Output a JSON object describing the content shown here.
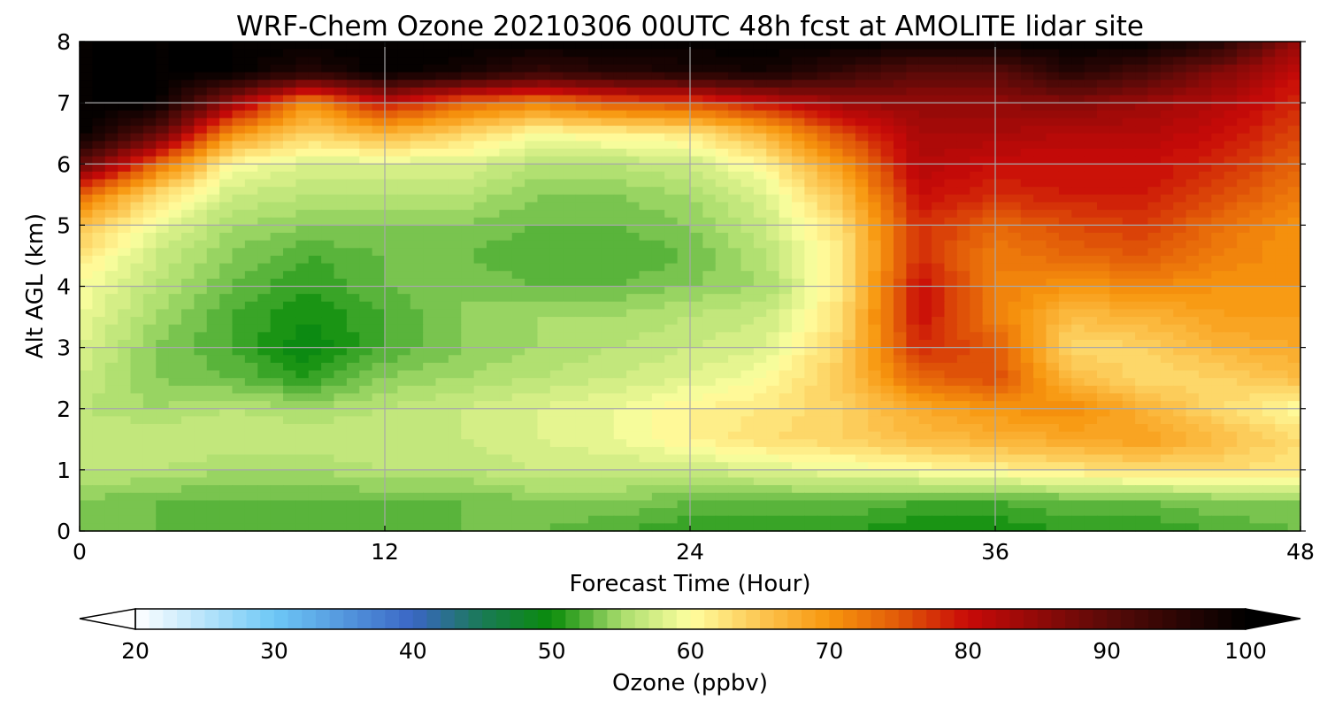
{
  "chart_data": {
    "type": "heatmap",
    "title": "WRF-Chem Ozone  20210306 00UTC 48h fcst at AMOLITE lidar site",
    "xlabel": "Forecast Time (Hour)",
    "ylabel": "Alt AGL (km)",
    "xlim": [
      0,
      48
    ],
    "ylim": [
      0,
      8
    ],
    "xticks": [
      0,
      12,
      24,
      36,
      48
    ],
    "yticks": [
      0,
      1,
      2,
      3,
      4,
      5,
      6,
      7,
      8
    ],
    "grid": true,
    "colorbar": {
      "label": "Ozone  (ppbv)",
      "min": 20,
      "max": 100,
      "step": 1,
      "ticks": [
        20,
        30,
        40,
        50,
        60,
        70,
        80,
        90,
        100
      ],
      "extend": "both",
      "under_color": "#ffffff",
      "over_color": "#000000",
      "colors": [
        {
          "value": 20,
          "color": "#ffffff"
        },
        {
          "value": 30,
          "color": "#6ec8f6"
        },
        {
          "value": 40,
          "color": "#3a66c4"
        },
        {
          "value": 45,
          "color": "#1a7a55"
        },
        {
          "value": 50,
          "color": "#0a8c0a"
        },
        {
          "value": 55,
          "color": "#a8dc6c"
        },
        {
          "value": 60,
          "color": "#ffffa0"
        },
        {
          "value": 65,
          "color": "#fcc652"
        },
        {
          "value": 70,
          "color": "#f7960d"
        },
        {
          "value": 75,
          "color": "#e25a08"
        },
        {
          "value": 80,
          "color": "#c80a08"
        },
        {
          "value": 90,
          "color": "#5a0a08"
        },
        {
          "value": 100,
          "color": "#000000"
        }
      ]
    },
    "x": [
      0,
      3,
      6,
      9,
      12,
      15,
      18,
      21,
      24,
      27,
      30,
      33,
      36,
      39,
      42,
      45,
      48
    ],
    "y": [
      0,
      0.5,
      1,
      1.5,
      2,
      2.5,
      3,
      3.5,
      4,
      4.5,
      5,
      5.5,
      6,
      6.5,
      7,
      7.5,
      8
    ],
    "z": [
      [
        53,
        53,
        52,
        53,
        52,
        53,
        53,
        52,
        51,
        51,
        51,
        50,
        50,
        51,
        51,
        52,
        53
      ],
      [
        54,
        53,
        53,
        53,
        53,
        53,
        54,
        54,
        53,
        53,
        53,
        52,
        52,
        53,
        53,
        54,
        54
      ],
      [
        56,
        56,
        55,
        55,
        56,
        56,
        57,
        57,
        57,
        58,
        59,
        60,
        61,
        62,
        63,
        63,
        62
      ],
      [
        57,
        57,
        57,
        57,
        57,
        57,
        58,
        59,
        61,
        63,
        64,
        66,
        67,
        68,
        69,
        66,
        63
      ],
      [
        56,
        55,
        56,
        55,
        56,
        57,
        58,
        59,
        61,
        62,
        64,
        68,
        70,
        71,
        67,
        63,
        60
      ],
      [
        57,
        54,
        53,
        51,
        54,
        55,
        56,
        57,
        58,
        60,
        65,
        74,
        76,
        66,
        63,
        64,
        66
      ],
      [
        58,
        54,
        52,
        49,
        52,
        54,
        55,
        56,
        57,
        58,
        64,
        78,
        75,
        63,
        64,
        67,
        68
      ],
      [
        59,
        55,
        52,
        50,
        52,
        54,
        55,
        55,
        56,
        57,
        63,
        80,
        72,
        66,
        67,
        69,
        69
      ],
      [
        60,
        56,
        53,
        51,
        53,
        54,
        53,
        53,
        54,
        55,
        62,
        80,
        72,
        70,
        71,
        70,
        70
      ],
      [
        62,
        57,
        54,
        52,
        53,
        53,
        52,
        52,
        53,
        56,
        62,
        78,
        72,
        74,
        75,
        72,
        70
      ],
      [
        66,
        59,
        55,
        54,
        54,
        54,
        53,
        53,
        54,
        57,
        63,
        78,
        74,
        76,
        77,
        73,
        70
      ],
      [
        74,
        63,
        57,
        56,
        56,
        56,
        54,
        54,
        55,
        58,
        66,
        80,
        78,
        79,
        79,
        76,
        72
      ],
      [
        90,
        74,
        60,
        58,
        58,
        58,
        56,
        56,
        57,
        61,
        70,
        82,
        80,
        80,
        80,
        78,
        74
      ],
      [
        100,
        90,
        70,
        64,
        67,
        64,
        60,
        61,
        62,
        67,
        76,
        83,
        83,
        82,
        82,
        80,
        76
      ],
      [
        100,
        100,
        84,
        70,
        80,
        74,
        72,
        75,
        76,
        80,
        84,
        85,
        85,
        86,
        84,
        82,
        78
      ],
      [
        100,
        100,
        100,
        96,
        100,
        98,
        94,
        96,
        97,
        98,
        94,
        90,
        90,
        96,
        92,
        86,
        80
      ],
      [
        100,
        100,
        100,
        100,
        100,
        100,
        100,
        100,
        100,
        100,
        100,
        100,
        100,
        100,
        100,
        96,
        84
      ]
    ]
  }
}
